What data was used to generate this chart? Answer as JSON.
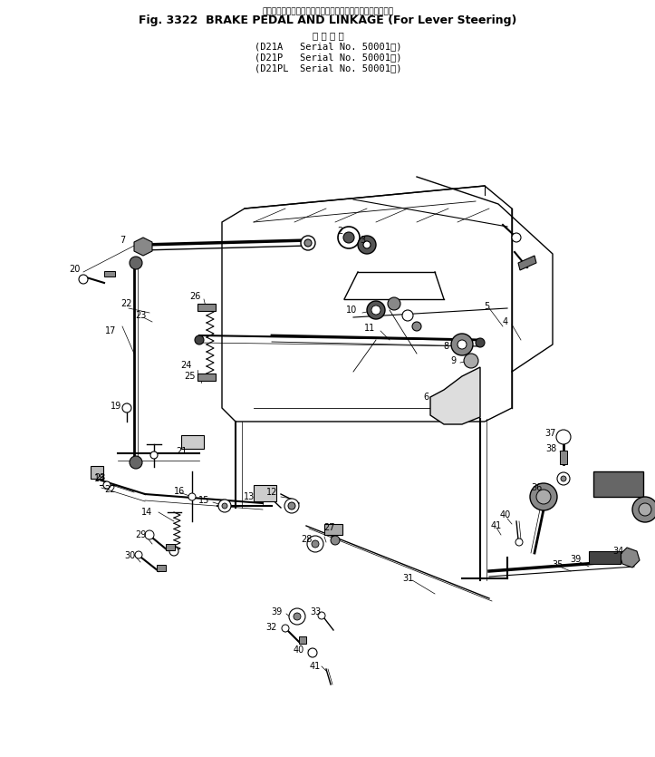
{
  "title_top_jp": "ブレーキ・ペダルとリンケージ（レバー・ステアリング用）",
  "title_main": "Fig. 3322  BRAKE PEDAL AND LINKAGE (For Lever Steering)",
  "subtitle_header": "適 用 号 機",
  "subtitle_lines": [
    "(D21A   Serial No. 50001～)",
    "(D21P   Serial No. 50001～)",
    "(D21PL  Serial No. 50001～)"
  ],
  "bg_color": "#ffffff",
  "line_color": "#000000"
}
